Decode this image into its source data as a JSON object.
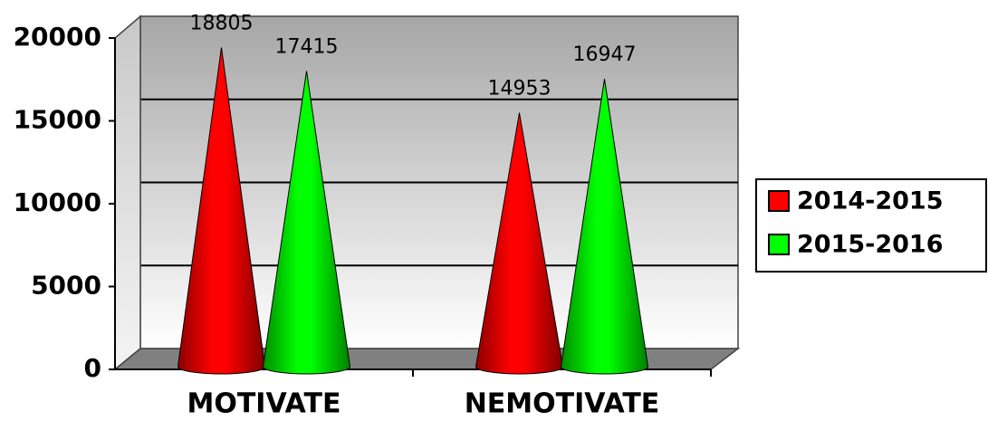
{
  "chart_data": {
    "type": "cone3d",
    "categories": [
      "MOTIVATE",
      "NEMOTIVATE"
    ],
    "series": [
      {
        "name": "2014-2015",
        "color": "#ff0000",
        "values": [
          18805,
          14953
        ]
      },
      {
        "name": "2015-2016",
        "color": "#00ff00",
        "values": [
          17415,
          16947
        ]
      }
    ],
    "ylim": [
      0,
      20000
    ],
    "yticks": [
      0,
      5000,
      10000,
      15000,
      20000
    ],
    "grid": true,
    "legend": "right"
  }
}
